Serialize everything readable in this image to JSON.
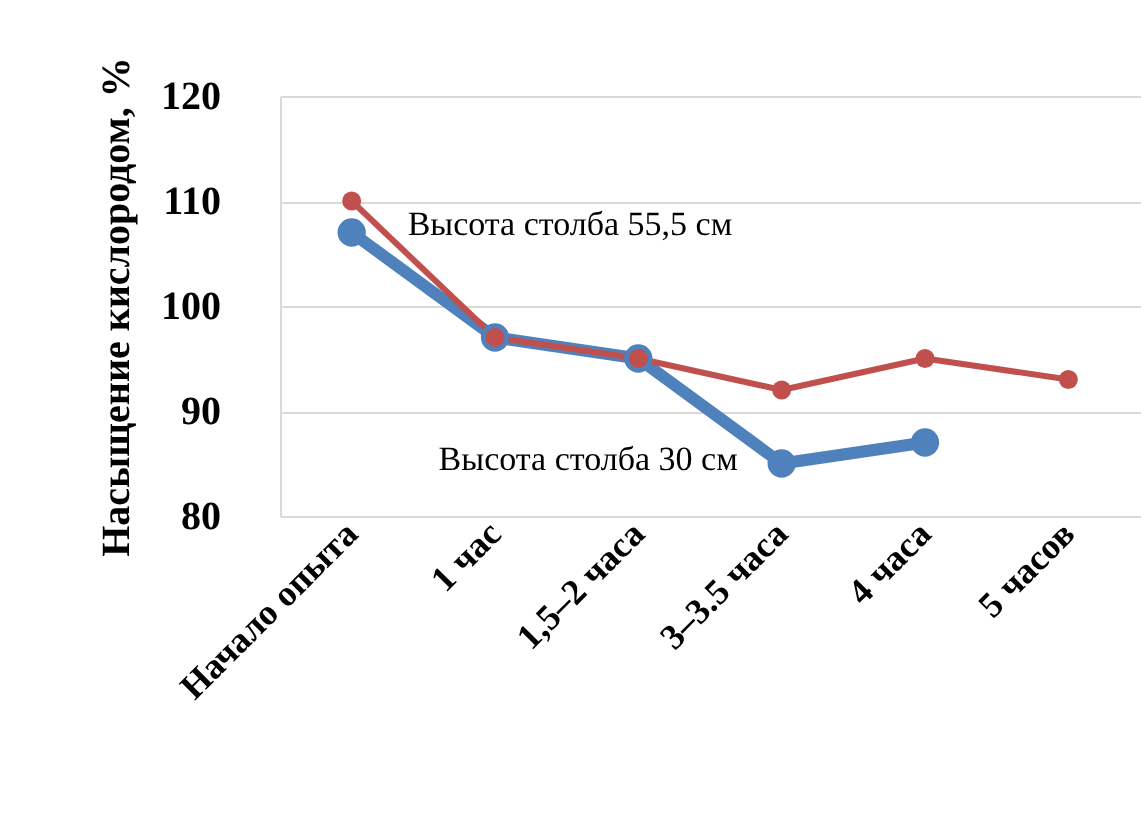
{
  "chart_data": {
    "type": "line",
    "ylabel": "Насыщение кислородом, %",
    "categories": [
      "Начало опыта",
      "1 час",
      "1,5–2 часа",
      "3–3.5 часа",
      "4 часа",
      "5 часов"
    ],
    "series": [
      {
        "name": "Высота столба 30 см",
        "color": "#4f81bd",
        "values": [
          107,
          97,
          95,
          85,
          87,
          null
        ]
      },
      {
        "name": "Высота столба 55,5 см",
        "color": "#c0504d",
        "values": [
          110,
          97,
          95,
          92,
          95,
          93
        ]
      }
    ],
    "ylim": [
      80,
      120
    ],
    "yticks": [
      80,
      90,
      100,
      110,
      120
    ],
    "grid": "y",
    "marker": "circle",
    "line_style": "solid"
  }
}
